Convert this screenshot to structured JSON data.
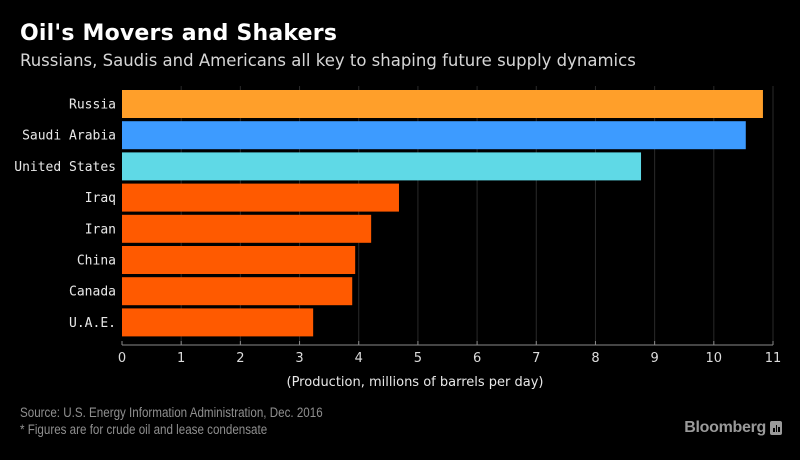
{
  "header": {
    "title": "Oil's Movers and Shakers",
    "subtitle": "Russians, Saudis and Americans all key to shaping future supply dynamics"
  },
  "chart_data": {
    "type": "bar",
    "orientation": "horizontal",
    "title": "Oil's Movers and Shakers",
    "subtitle": "Russians, Saudis and Americans all key to shaping future supply dynamics",
    "categories": [
      "Russia",
      "Saudi Arabia",
      "United States",
      "Iraq",
      "Iran",
      "China",
      "Canada",
      "U.A.E."
    ],
    "values": [
      10.83,
      10.54,
      8.77,
      4.68,
      4.21,
      3.94,
      3.89,
      3.23
    ],
    "colors": [
      "#ff9f2a",
      "#3d9bff",
      "#5fd9e6",
      "#ff5a00",
      "#ff5a00",
      "#ff5a00",
      "#ff5a00",
      "#ff5a00"
    ],
    "xlabel": "(Production, millions of barrels per day)",
    "ylabel": "",
    "xlim": [
      0,
      11
    ],
    "xticks": [
      0,
      1,
      2,
      3,
      4,
      5,
      6,
      7,
      8,
      9,
      10,
      11
    ],
    "grid": true,
    "legend": "none"
  },
  "footer": {
    "source": "Source: U.S. Energy Information Administration, Dec. 2016",
    "note": "* Figures are for crude oil and lease condensate",
    "brand": "Bloomberg",
    "brand_icon": "bloomberg-chart-icon"
  }
}
